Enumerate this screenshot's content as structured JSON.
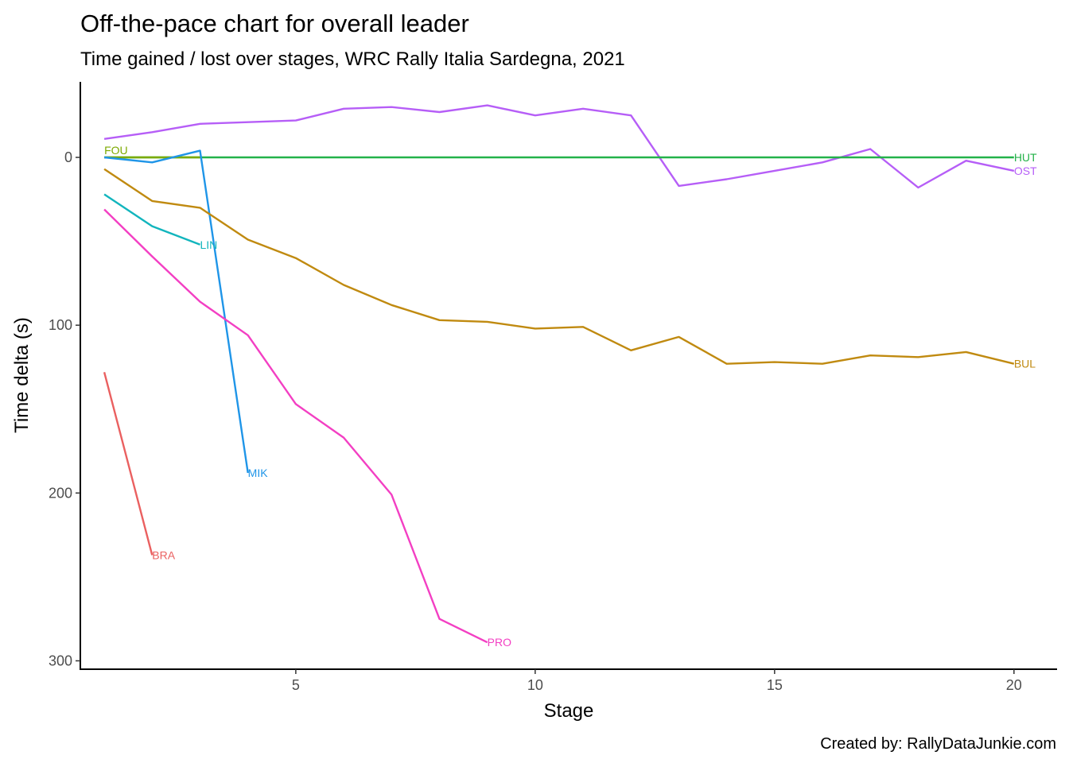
{
  "chart_data": {
    "type": "line",
    "title": "Off-the-pace chart for overall leader",
    "subtitle": "Time gained / lost over stages, WRC Rally Italia Sardegna, 2021",
    "xlabel": "Stage",
    "ylabel": "Time delta (s)",
    "caption": "Created by: RallyDataJunkie.com",
    "xlim": [
      0.5,
      20.9
    ],
    "ylim": [
      -45,
      305
    ],
    "y_reversed": true,
    "xticks": [
      5,
      10,
      15,
      20
    ],
    "yticks": [
      0,
      100,
      200,
      300
    ],
    "xtick_labels": [
      "5",
      "10",
      "15",
      "20"
    ],
    "ytick_labels": [
      "0",
      "100",
      "200",
      "300"
    ],
    "grid": false,
    "legend": "none",
    "series": [
      {
        "name": "OST",
        "color": "#b65ef7",
        "label_at": "end",
        "x": [
          1,
          2,
          3,
          4,
          5,
          6,
          7,
          8,
          9,
          10,
          11,
          12,
          13,
          14,
          15,
          16,
          17,
          18,
          19,
          20
        ],
        "y": [
          -11,
          -15,
          -20,
          -21,
          -22,
          -29,
          -30,
          -27,
          -31,
          -25,
          -29,
          -25,
          17,
          13,
          8,
          3,
          -5,
          18,
          2,
          8
        ]
      },
      {
        "name": "HUT",
        "color": "#24b24a",
        "label_at": "end",
        "x": [
          1,
          20
        ],
        "y": [
          0,
          0
        ]
      },
      {
        "name": "FOU",
        "color": "#7caa00",
        "label_at": "start",
        "x": [
          1,
          2,
          3
        ],
        "y": [
          0,
          0,
          0
        ]
      },
      {
        "name": "MIK",
        "color": "#1f95e8",
        "label_at": "end",
        "x": [
          1,
          2,
          3,
          4
        ],
        "y": [
          0,
          3,
          -4,
          188
        ]
      },
      {
        "name": "BUL",
        "color": "#c08a10",
        "label_at": "end",
        "x": [
          1,
          2,
          3,
          4,
          5,
          6,
          7,
          8,
          9,
          10,
          11,
          12,
          13,
          14,
          15,
          16,
          17,
          18,
          19,
          20
        ],
        "y": [
          7,
          26,
          30,
          49,
          60,
          76,
          88,
          97,
          98,
          102,
          101,
          115,
          107,
          123,
          122,
          123,
          118,
          119,
          116,
          123
        ]
      },
      {
        "name": "LIN",
        "color": "#12b5bd",
        "label_at": "end",
        "x": [
          1,
          2,
          3
        ],
        "y": [
          22,
          41,
          52
        ]
      },
      {
        "name": "PRO",
        "color": "#f33fc3",
        "label_at": "end",
        "x": [
          1,
          2,
          3,
          4,
          5,
          6,
          7,
          8,
          9
        ],
        "y": [
          31,
          59,
          86,
          106,
          147,
          167,
          201,
          275,
          289
        ]
      },
      {
        "name": "BRA",
        "color": "#ea6060",
        "label_at": "end",
        "x": [
          1,
          2
        ],
        "y": [
          128,
          237
        ]
      }
    ]
  }
}
